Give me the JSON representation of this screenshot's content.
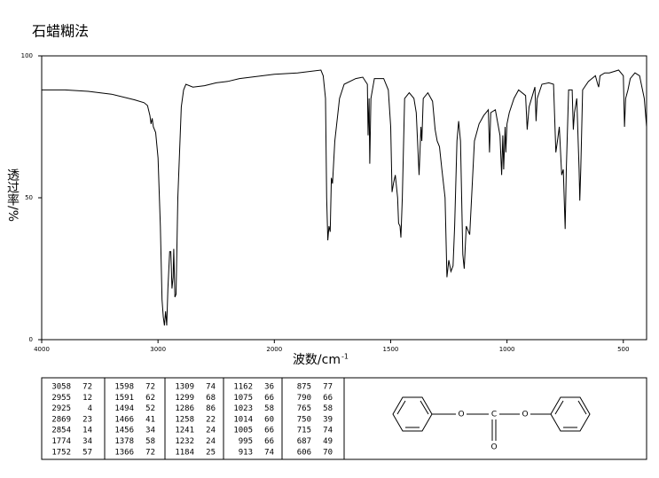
{
  "chart_data": {
    "type": "line",
    "title": "石蜡糊法",
    "xlabel": "波数/cm",
    "xlabel_exponent": "-1",
    "ylabel": "透过率/%",
    "xlim": [
      4000,
      400
    ],
    "xticks": [
      4000,
      3000,
      2000,
      1500,
      1000,
      500
    ],
    "x_scale_break": 2000,
    "x_scale_factor": 2,
    "ylim": [
      0,
      100
    ],
    "yticks": [
      0,
      50,
      100
    ],
    "series": [
      {
        "name": "spectrum",
        "color": "#000000",
        "x": [
          4000,
          3800,
          3600,
          3400,
          3200,
          3120,
          3090,
          3070,
          3060,
          3050,
          3040,
          3020,
          3000,
          2980,
          2965,
          2955,
          2945,
          2935,
          2925,
          2915,
          2900,
          2890,
          2880,
          2870,
          2865,
          2855,
          2845,
          2830,
          2800,
          2780,
          2760,
          2700,
          2600,
          2500,
          2400,
          2300,
          2200,
          2000,
          1900,
          1800,
          1790,
          1780,
          1775,
          1770,
          1765,
          1760,
          1755,
          1750,
          1740,
          1720,
          1700,
          1650,
          1620,
          1600,
          1597,
          1593,
          1590,
          1585,
          1570,
          1530,
          1510,
          1500,
          1494,
          1488,
          1480,
          1470,
          1466,
          1460,
          1456,
          1450,
          1440,
          1420,
          1400,
          1390,
          1378,
          1370,
          1366,
          1360,
          1340,
          1320,
          1309,
          1300,
          1290,
          1280,
          1266,
          1258,
          1250,
          1241,
          1232,
          1225,
          1215,
          1208,
          1200,
          1190,
          1184,
          1175,
          1165,
          1160,
          1152,
          1140,
          1120,
          1100,
          1080,
          1075,
          1070,
          1050,
          1030,
          1023,
          1018,
          1014,
          1008,
          1005,
          1000,
          990,
          970,
          950,
          920,
          913,
          905,
          880,
          875,
          870,
          850,
          820,
          800,
          790,
          783,
          775,
          765,
          758,
          750,
          745,
          735,
          720,
          715,
          710,
          700,
          690,
          687,
          683,
          675,
          650,
          620,
          610,
          606,
          600,
          580,
          560,
          540,
          520,
          500,
          495,
          490,
          480,
          470,
          450,
          430,
          410,
          400
        ],
        "values": [
          88,
          88,
          87.5,
          86.5,
          84.5,
          83.5,
          82.5,
          79,
          76,
          78,
          75,
          73,
          64,
          40,
          14,
          8,
          5,
          10,
          5,
          18,
          31,
          31,
          18,
          22,
          32,
          15,
          16,
          50,
          82,
          88,
          90,
          89,
          89.5,
          90.5,
          91,
          92,
          92.5,
          93.5,
          94,
          95,
          93,
          85,
          50,
          35,
          40,
          38,
          57,
          55,
          70,
          85,
          90,
          92,
          92.5,
          90,
          72,
          85,
          62,
          85,
          92,
          92,
          88,
          75,
          52,
          55,
          58,
          50,
          41,
          40,
          36,
          50,
          85,
          87,
          85,
          80,
          58,
          75,
          70,
          85,
          87,
          84,
          74,
          70,
          68,
          60,
          50,
          22,
          28,
          24,
          26,
          40,
          70,
          77,
          70,
          30,
          25,
          40,
          38,
          37,
          50,
          70,
          76,
          79,
          81,
          66,
          80,
          81,
          72,
          58,
          72,
          60,
          75,
          66,
          76,
          80,
          85,
          88,
          86,
          74,
          82,
          89,
          77,
          85,
          90,
          90.5,
          90,
          66,
          70,
          75,
          58,
          60,
          39,
          60,
          88,
          88,
          74,
          80,
          85,
          60,
          49,
          60,
          88,
          91,
          93,
          90,
          89,
          93,
          94,
          94,
          94.5,
          95,
          93,
          75,
          85,
          88,
          92,
          94,
          93,
          85,
          75
        ]
      }
    ]
  },
  "peak_table": {
    "columns": [
      [
        [
          "3058",
          "72"
        ],
        [
          "2955",
          "12"
        ],
        [
          "2925",
          "4"
        ],
        [
          "2869",
          "23"
        ],
        [
          "2854",
          "14"
        ],
        [
          "1774",
          "34"
        ],
        [
          "1752",
          "57"
        ]
      ],
      [
        [
          "1598",
          "72"
        ],
        [
          "1591",
          "62"
        ],
        [
          "1494",
          "52"
        ],
        [
          "1466",
          "41"
        ],
        [
          "1456",
          "34"
        ],
        [
          "1378",
          "58"
        ],
        [
          "1366",
          "72"
        ]
      ],
      [
        [
          "1309",
          "74"
        ],
        [
          "1299",
          "68"
        ],
        [
          "1286",
          "86"
        ],
        [
          "1258",
          "22"
        ],
        [
          "1241",
          "24"
        ],
        [
          "1232",
          "24"
        ],
        [
          "1184",
          "25"
        ]
      ],
      [
        [
          "1162",
          "36"
        ],
        [
          "1075",
          "66"
        ],
        [
          "1023",
          "58"
        ],
        [
          "1014",
          "60"
        ],
        [
          "1005",
          "66"
        ],
        [
          "995",
          "66"
        ],
        [
          "913",
          "74"
        ]
      ],
      [
        [
          "875",
          "77"
        ],
        [
          "790",
          "66"
        ],
        [
          "765",
          "58"
        ],
        [
          "750",
          "39"
        ],
        [
          "715",
          "74"
        ],
        [
          "687",
          "49"
        ],
        [
          "606",
          "70"
        ]
      ]
    ]
  },
  "structure": {
    "labels": [
      "O",
      "C",
      "O",
      "O"
    ]
  }
}
